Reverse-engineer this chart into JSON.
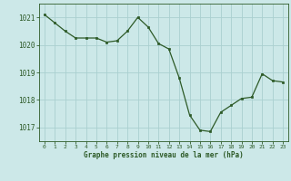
{
  "x": [
    0,
    1,
    2,
    3,
    4,
    5,
    6,
    7,
    8,
    9,
    10,
    11,
    12,
    13,
    14,
    15,
    16,
    17,
    18,
    19,
    20,
    21,
    22,
    23
  ],
  "y": [
    1021.1,
    1020.8,
    1020.5,
    1020.25,
    1020.25,
    1020.25,
    1020.1,
    1020.15,
    1020.5,
    1021.0,
    1020.65,
    1020.05,
    1019.85,
    1018.8,
    1017.45,
    1016.9,
    1016.85,
    1017.55,
    1017.8,
    1018.05,
    1018.1,
    1018.95,
    1018.7,
    1018.65
  ],
  "ylim": [
    1016.5,
    1021.5
  ],
  "yticks": [
    1017,
    1018,
    1019,
    1020,
    1021
  ],
  "xticks": [
    0,
    1,
    2,
    3,
    4,
    5,
    6,
    7,
    8,
    9,
    10,
    11,
    12,
    13,
    14,
    15,
    16,
    17,
    18,
    19,
    20,
    21,
    22,
    23
  ],
  "line_color": "#2d5a27",
  "marker_color": "#2d5a27",
  "bg_color": "#cce8e8",
  "grid_color": "#aad0d0",
  "xlabel": "Graphe pression niveau de la mer (hPa)",
  "xlabel_color": "#2d5a27",
  "tick_color": "#2d5a27",
  "figsize": [
    3.2,
    2.0
  ],
  "dpi": 100
}
